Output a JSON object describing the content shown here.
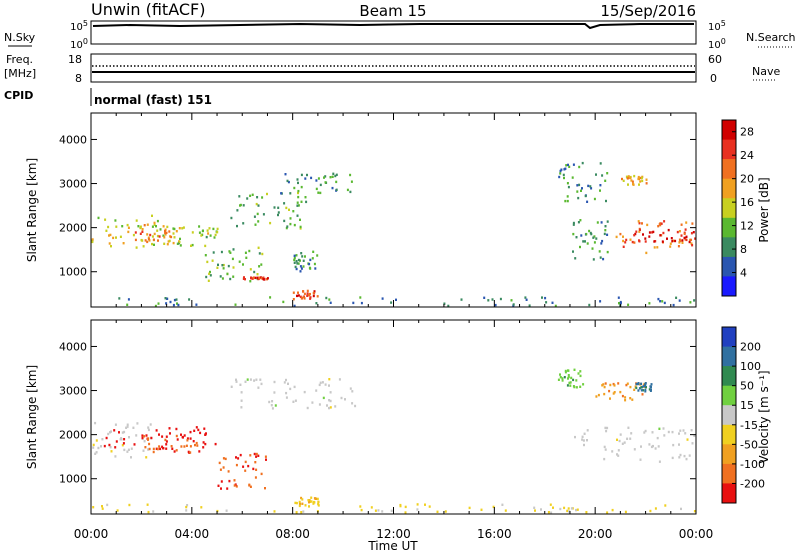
{
  "header": {
    "station": "Unwin (fitACF)",
    "beam": "Beam 15",
    "date": "15/Sep/2016"
  },
  "summary_panels": {
    "nsky": {
      "label": "N.Sky",
      "left_ticks": [
        "10^5",
        "10^0"
      ],
      "right_ticks": [
        "10^5",
        "10^0"
      ],
      "right_label": "N.Search"
    },
    "freq": {
      "label_line1": "Freq.",
      "label_line2": "[MHz]",
      "left_ticks": [
        "18",
        "8"
      ],
      "right_ticks": [
        "60",
        "0"
      ],
      "right_label": "Nave"
    },
    "cpid": {
      "label": "CPID",
      "text": "normal (fast) 151"
    }
  },
  "chart_data": [
    {
      "type": "heatmap",
      "name": "power",
      "ylabel": "Slant Range [km]",
      "xlabel": "",
      "xlim_hours": [
        0,
        24
      ],
      "ylim": [
        200,
        4600
      ],
      "yticks": [
        1000,
        2000,
        3000,
        4000
      ],
      "colorbar": {
        "label": "Power [dB]",
        "ticks": [
          "4",
          "8",
          "12",
          "16",
          "20",
          "24",
          "28"
        ],
        "range": [
          0,
          30
        ],
        "colors": [
          "#1a1aff",
          "#2a56b0",
          "#3a8a60",
          "#5ab830",
          "#c8d020",
          "#f0a020",
          "#f07020",
          "#e83020",
          "#d00000"
        ]
      },
      "regions": [
        {
          "t0": 0.0,
          "t1": 3.0,
          "r0": 1500,
          "r1": 2300,
          "value": 15
        },
        {
          "t0": 1.5,
          "t1": 3.5,
          "r0": 1700,
          "r1": 2100,
          "value": 20
        },
        {
          "t0": 3.0,
          "t1": 5.0,
          "r0": 1600,
          "r1": 2100,
          "value": 13
        },
        {
          "t0": 4.5,
          "t1": 6.8,
          "r0": 800,
          "r1": 1600,
          "value": 12
        },
        {
          "t0": 6.0,
          "t1": 7.0,
          "r0": 850,
          "r1": 900,
          "value": 26
        },
        {
          "t0": 5.5,
          "t1": 8.5,
          "r0": 2000,
          "r1": 2800,
          "value": 10
        },
        {
          "t0": 7.5,
          "t1": 10.5,
          "r0": 2800,
          "r1": 3300,
          "value": 10
        },
        {
          "t0": 8.0,
          "t1": 9.0,
          "r0": 1000,
          "r1": 1500,
          "value": 9
        },
        {
          "t0": 19.0,
          "t1": 20.5,
          "r0": 1300,
          "r1": 2200,
          "value": 9
        },
        {
          "t0": 20.8,
          "t1": 24.0,
          "r0": 1400,
          "r1": 2200,
          "value": 22
        },
        {
          "t0": 21.5,
          "t1": 24.0,
          "r0": 1700,
          "r1": 2000,
          "value": 27
        },
        {
          "t0": 18.5,
          "t1": 20.5,
          "r0": 2600,
          "r1": 3500,
          "value": 9
        },
        {
          "t0": 21.0,
          "t1": 22.0,
          "r0": 3000,
          "r1": 3200,
          "value": 18
        },
        {
          "t0": 8.0,
          "t1": 9.0,
          "r0": 400,
          "r1": 600,
          "value": 24
        },
        {
          "t0": 0.0,
          "t1": 24.0,
          "r0": 250,
          "r1": 450,
          "value": 8
        }
      ]
    },
    {
      "type": "heatmap",
      "name": "velocity",
      "ylabel": "Slant Range [km]",
      "xlabel": "Time UT",
      "xlim_hours": [
        0,
        24
      ],
      "xticks": [
        "00:00",
        "04:00",
        "08:00",
        "12:00",
        "16:00",
        "20:00",
        "00:00"
      ],
      "ylim": [
        200,
        4600
      ],
      "yticks": [
        1000,
        2000,
        3000,
        4000
      ],
      "colorbar": {
        "label": "Velocity [m s⁻¹]",
        "ticks": [
          "200",
          "100",
          "50",
          "15",
          "-15",
          "-50",
          "-100",
          "-200"
        ],
        "range": [
          -250,
          250
        ],
        "colors": [
          "#2040c0",
          "#3070a0",
          "#308a50",
          "#70d040",
          "#c8c8c8",
          "#f0d020",
          "#f0a020",
          "#f07020",
          "#e81010"
        ]
      },
      "regions": [
        {
          "t0": 0.0,
          "t1": 2.5,
          "r0": 1500,
          "r1": 2300,
          "value": -5
        },
        {
          "t0": 0.5,
          "t1": 5.0,
          "r0": 1700,
          "r1": 2200,
          "value": -230
        },
        {
          "t0": 2.0,
          "t1": 4.5,
          "r0": 1600,
          "r1": 2000,
          "value": -180
        },
        {
          "t0": 5.0,
          "t1": 7.0,
          "r0": 800,
          "r1": 1600,
          "value": -200
        },
        {
          "t0": 5.5,
          "t1": 10.5,
          "r0": 2600,
          "r1": 3300,
          "value": 0
        },
        {
          "t0": 8.0,
          "t1": 9.0,
          "r0": 400,
          "r1": 600,
          "value": -80
        },
        {
          "t0": 19.0,
          "t1": 24.0,
          "r0": 1400,
          "r1": 2200,
          "value": 0
        },
        {
          "t0": 20.0,
          "t1": 22.0,
          "r0": 2800,
          "r1": 3200,
          "value": -120
        },
        {
          "t0": 21.5,
          "t1": 22.2,
          "r0": 3000,
          "r1": 3200,
          "value": 150
        },
        {
          "t0": 18.5,
          "t1": 19.5,
          "r0": 3100,
          "r1": 3500,
          "value": 60
        },
        {
          "t0": 0.0,
          "t1": 24.0,
          "r0": 250,
          "r1": 450,
          "value": -40
        }
      ]
    }
  ]
}
